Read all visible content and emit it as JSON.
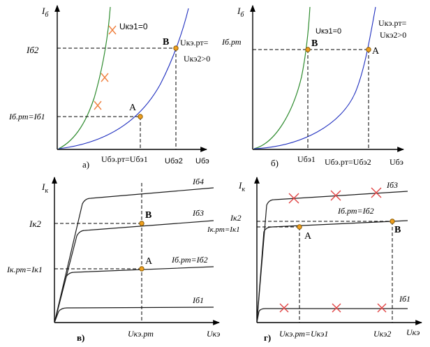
{
  "panel_a": {
    "y_axis": "I",
    "y_axis_sub": "б",
    "x_axis_label": "Uбэ",
    "x_tick_1": "Uбэ.рт=Uбэ1",
    "x_tick_2": "Uбэ2",
    "y_tick_1": "Iб.рт=Iб1",
    "y_tick_2": "Iб2",
    "curve_label_1": "Uкэ1=0",
    "curve_label_2a": "Uкэ.рт=",
    "curve_label_2b": "Uкэ2>0",
    "point_a": "A",
    "point_b": "B",
    "caption": "а)"
  },
  "panel_b": {
    "y_axis": "I",
    "y_axis_sub": "б",
    "x_axis_label": "Uбэ",
    "x_tick_1": "Uбэ1",
    "x_tick_2": "Uбэ.рт=Uбэ2",
    "y_tick_1": "Iб.рт",
    "curve_label_1": "Uкэ1=0",
    "curve_label_2a": "Uкэ.рт=",
    "curve_label_2b": "Uкэ2>0",
    "point_a": "A",
    "point_b": "B",
    "caption": "б)"
  },
  "panel_c": {
    "y_axis": "I",
    "y_axis_sub": "к",
    "x_axis_label": "Uкэ",
    "x_tick_1": "Uкэ.рт",
    "y_tick_1": "Iк.рт=Iк1",
    "y_tick_2": "Iк2",
    "curve_label_1": "Iб.рт=Iб2",
    "curve_label_2": "Iб3",
    "curve_label_3": "Iб4",
    "curve_label_4": "Iб1",
    "point_a": "A",
    "point_b": "B",
    "caption": "в)"
  },
  "panel_d": {
    "y_axis": "I",
    "y_axis_sub": "к",
    "x_axis_label": "Uкэ",
    "x_tick_1": "Uкэ.рт=Uкэ1",
    "x_tick_2": "Uкэ2",
    "y_tick_1": "Iк.рт=Iк1",
    "y_tick_2": "Iк2",
    "curve_label_1": "Iб.рт=Iб2",
    "curve_label_2": "Iб3",
    "curve_label_3": "Iб1",
    "point_a": "A",
    "point_b": "B",
    "caption": "г)"
  },
  "colors": {
    "green_curve": "#2e8b2e",
    "blue_curve": "#1f2fbf",
    "point_fill": "#f0a020",
    "cross_orange": "#f08040",
    "cross_red": "#e04040"
  }
}
